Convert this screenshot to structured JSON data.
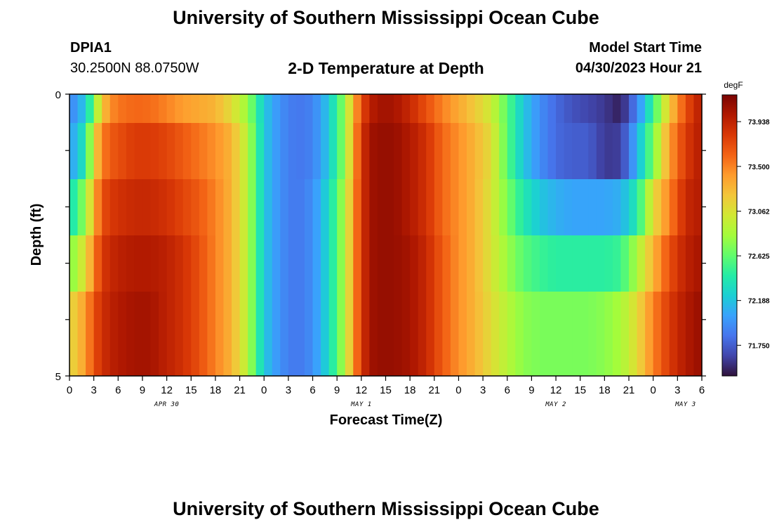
{
  "header": {
    "title": "University of Southern Mississippi Ocean Cube",
    "station_id": "DPIA1",
    "station_coords": "30.2500N  88.0750W",
    "model_start_label": "Model Start Time",
    "model_start_value": "04/30/2023 Hour 21",
    "footer_title": "University of Southern Mississippi Ocean Cube"
  },
  "chart_data": {
    "type": "heatmap",
    "title": "2-D Temperature at Depth",
    "xlabel": "Forecast Time(Z)",
    "ylabel": "Depth (ft)",
    "x_tick_labels": [
      "0",
      "3",
      "6",
      "9",
      "12",
      "15",
      "18",
      "21",
      "0",
      "3",
      "6",
      "9",
      "12",
      "15",
      "18",
      "21",
      "0",
      "3",
      "6",
      "9",
      "12",
      "15",
      "18",
      "21",
      "0",
      "3",
      "6"
    ],
    "day_labels": [
      {
        "label": "APR 30",
        "hour": 12
      },
      {
        "label": "MAY 1",
        "hour": 36
      },
      {
        "label": "MAY 2",
        "hour": 60
      },
      {
        "label": "MAY 3",
        "hour": 76
      }
    ],
    "x_range_hours": [
      0,
      78
    ],
    "y_tick_labels": [
      "0",
      "5"
    ],
    "ylim": [
      0,
      5
    ],
    "depth_rows": 5,
    "colorbar": {
      "unit": "degF",
      "range": [
        71.45,
        74.2
      ],
      "tick_labels": [
        "73.938",
        "73.500",
        "73.062",
        "72.625",
        "72.188",
        "71.750"
      ],
      "colors": [
        "#30123b",
        "#4145ab",
        "#4675ed",
        "#39a2fc",
        "#1bcfd4",
        "#24eca6",
        "#61fc6c",
        "#a4fc3b",
        "#d1e834",
        "#f3c63a",
        "#fe9b2d",
        "#f36315",
        "#d93806",
        "#b11901",
        "#7a0402"
      ]
    },
    "temperature_keyframes": {
      "hours": [
        0,
        2,
        3,
        4,
        5,
        6,
        8,
        10,
        12,
        14,
        16,
        18,
        20,
        22,
        23,
        24,
        26,
        28,
        30,
        32,
        34,
        35,
        36,
        37,
        38,
        40,
        42,
        44,
        46,
        48,
        50,
        52,
        54,
        56,
        58,
        60,
        62,
        64,
        66,
        68,
        70,
        72,
        74,
        76,
        78
      ],
      "rows": [
        [
          71.9,
          72.2,
          72.7,
          73.2,
          73.45,
          73.55,
          73.6,
          73.58,
          73.5,
          73.4,
          73.35,
          73.3,
          73.1,
          72.8,
          72.5,
          72.2,
          71.95,
          71.85,
          71.9,
          72.2,
          72.8,
          73.3,
          73.7,
          73.95,
          74.05,
          74.05,
          73.9,
          73.7,
          73.5,
          73.35,
          73.2,
          73.0,
          72.6,
          72.2,
          71.95,
          71.8,
          71.7,
          71.65,
          71.6,
          71.5,
          71.9,
          72.5,
          73.2,
          73.7,
          74.0
        ],
        [
          72.0,
          72.4,
          73.1,
          73.5,
          73.65,
          73.7,
          73.8,
          73.8,
          73.75,
          73.65,
          73.55,
          73.45,
          73.3,
          72.9,
          72.55,
          72.2,
          71.95,
          71.85,
          71.9,
          72.2,
          72.8,
          73.35,
          73.8,
          74.05,
          74.1,
          74.1,
          74.0,
          73.85,
          73.6,
          73.45,
          73.3,
          73.1,
          72.6,
          72.2,
          71.95,
          71.8,
          71.75,
          71.75,
          71.6,
          71.62,
          72.1,
          72.7,
          73.4,
          73.8,
          74.0
        ],
        [
          72.3,
          72.8,
          73.3,
          73.7,
          73.8,
          73.85,
          73.9,
          73.9,
          73.85,
          73.75,
          73.65,
          73.5,
          73.3,
          72.9,
          72.55,
          72.2,
          71.95,
          71.85,
          71.95,
          72.3,
          72.9,
          73.4,
          73.8,
          74.05,
          74.1,
          74.1,
          74.0,
          73.85,
          73.6,
          73.45,
          73.3,
          73.05,
          72.7,
          72.4,
          72.2,
          72.1,
          72.05,
          72.05,
          72.05,
          72.1,
          72.4,
          73.1,
          73.5,
          73.9,
          74.0
        ],
        [
          72.7,
          73.1,
          73.5,
          73.8,
          73.9,
          73.95,
          74.0,
          74.0,
          73.95,
          73.85,
          73.7,
          73.5,
          73.3,
          72.9,
          72.55,
          72.2,
          71.95,
          71.85,
          71.95,
          72.3,
          72.9,
          73.4,
          73.8,
          74.05,
          74.1,
          74.1,
          74.05,
          73.9,
          73.65,
          73.45,
          73.3,
          73.05,
          72.8,
          72.6,
          72.5,
          72.45,
          72.45,
          72.45,
          72.45,
          72.5,
          72.85,
          73.3,
          73.7,
          73.95,
          74.05
        ],
        [
          73.1,
          73.4,
          73.7,
          73.85,
          73.95,
          74.0,
          74.05,
          74.05,
          73.95,
          73.85,
          73.7,
          73.5,
          73.3,
          72.9,
          72.55,
          72.2,
          71.95,
          71.85,
          71.95,
          72.3,
          72.9,
          73.4,
          73.8,
          74.05,
          74.1,
          74.1,
          74.05,
          73.9,
          73.65,
          73.45,
          73.3,
          73.1,
          72.9,
          72.75,
          72.7,
          72.7,
          72.7,
          72.7,
          72.75,
          72.85,
          73.1,
          73.5,
          73.8,
          74.0,
          74.1
        ]
      ]
    }
  }
}
